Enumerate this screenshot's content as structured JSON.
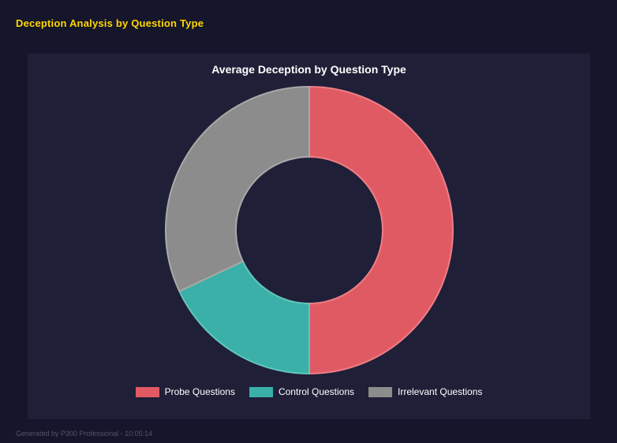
{
  "page": {
    "title": "Deception Analysis by Question Type"
  },
  "footer": {
    "text": "Generated by P300 Professional - 10:05:14"
  },
  "chart_data": {
    "type": "pie",
    "variant": "donut",
    "title": "Average Deception by Question Type",
    "categories": [
      "Probe Questions",
      "Control Questions",
      "Irrelevant Questions"
    ],
    "values": [
      50,
      18,
      32
    ],
    "unit": "percent-of-total",
    "colors": [
      "#e05a64",
      "#3ab0a8",
      "#8c8c8c"
    ],
    "border_colors": [
      "#ee7e87",
      "#62c6bd",
      "#a9a9a9"
    ],
    "start_angle": 0,
    "inner_radius_ratio": 0.51,
    "legend_position": "bottom",
    "grid": false
  },
  "colors": {
    "background": "#15152b",
    "panel": "#1f1f37",
    "page_title": "#ffd700",
    "chart_title": "#ffffff",
    "legend_text": "#ffffff",
    "footer_text": "#53536a"
  }
}
